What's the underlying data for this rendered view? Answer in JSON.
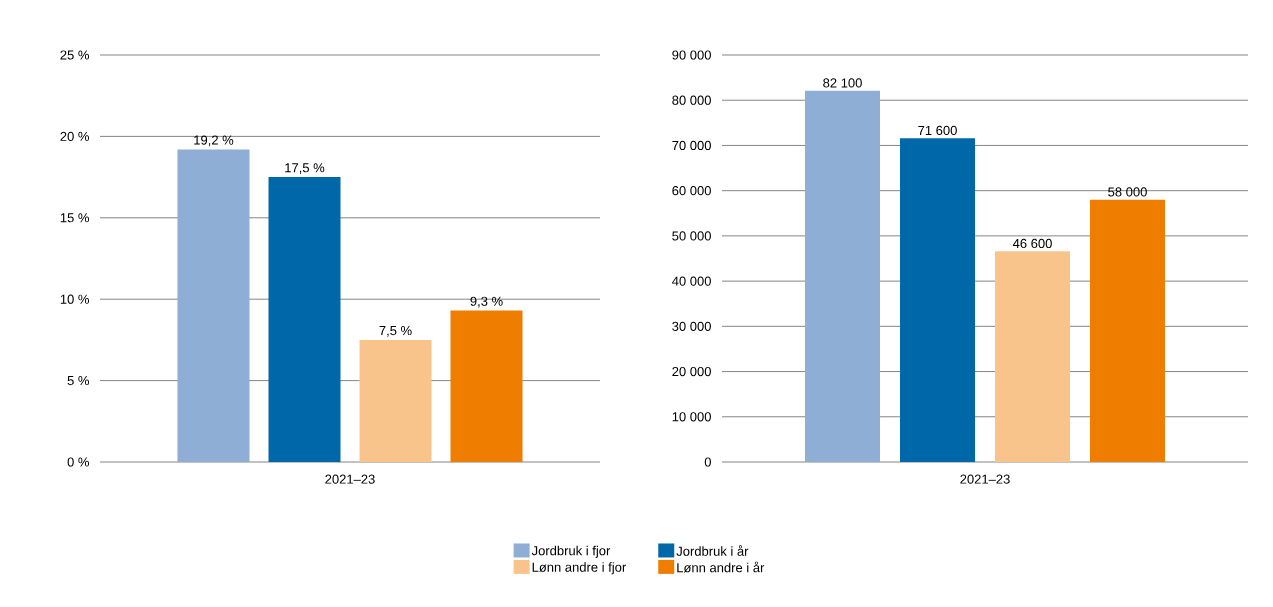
{
  "chart_data": [
    {
      "type": "bar",
      "categories": [
        "2021–23"
      ],
      "ylim": [
        0,
        25
      ],
      "yticks": [
        {
          "value": 0,
          "label": "0 %"
        },
        {
          "value": 5,
          "label": "5 %"
        },
        {
          "value": 10,
          "label": "10 %"
        },
        {
          "value": 15,
          "label": "15 %"
        },
        {
          "value": 20,
          "label": "20 %"
        },
        {
          "value": 25,
          "label": "25 %"
        }
      ],
      "grid": "y",
      "legend": "bottom",
      "series": [
        {
          "name": "Jordbruk i fjor",
          "color": "#8eaed6",
          "values": [
            19.2
          ],
          "value_labels": [
            "19,2 %"
          ]
        },
        {
          "name": "Jordbruk i år",
          "color": "#0067a8",
          "values": [
            17.5
          ],
          "value_labels": [
            "17,5 %"
          ]
        },
        {
          "name": "Lønn andre i fjor",
          "color": "#f8c48c",
          "values": [
            7.5
          ],
          "value_labels": [
            "7,5 %"
          ]
        },
        {
          "name": "Lønn andre i år",
          "color": "#ef7d00",
          "values": [
            9.3
          ],
          "value_labels": [
            "9,3 %"
          ]
        }
      ]
    },
    {
      "type": "bar",
      "categories": [
        "2021–23"
      ],
      "ylim": [
        0,
        90000
      ],
      "yticks": [
        0,
        {
          "value": 10000,
          "label": "10 000"
        },
        {
          "value": 20000,
          "label": "20 000"
        },
        {
          "value": 30000,
          "label": "30 000"
        },
        {
          "value": 40000,
          "label": "40 000"
        },
        {
          "value": 50000,
          "label": "50 000"
        },
        {
          "value": 60000,
          "label": "60 000"
        },
        {
          "value": 70000,
          "label": "70 000"
        },
        {
          "value": 80000,
          "label": "80 000"
        },
        {
          "value": 90000,
          "label": "90 000"
        }
      ],
      "grid": "y",
      "series": [
        {
          "color": "#8eaed6",
          "values": [
            82100
          ],
          "value_labels": [
            "82 100"
          ]
        },
        {
          "color": "#0067a8",
          "values": [
            71600
          ],
          "value_labels": [
            "71 600"
          ]
        },
        {
          "color": "#f8c48c",
          "values": [
            46600
          ],
          "value_labels": [
            "46 600"
          ]
        },
        {
          "color": "#ef7d00",
          "values": [
            58000
          ],
          "value_labels": [
            "58 000"
          ]
        }
      ]
    }
  ]
}
